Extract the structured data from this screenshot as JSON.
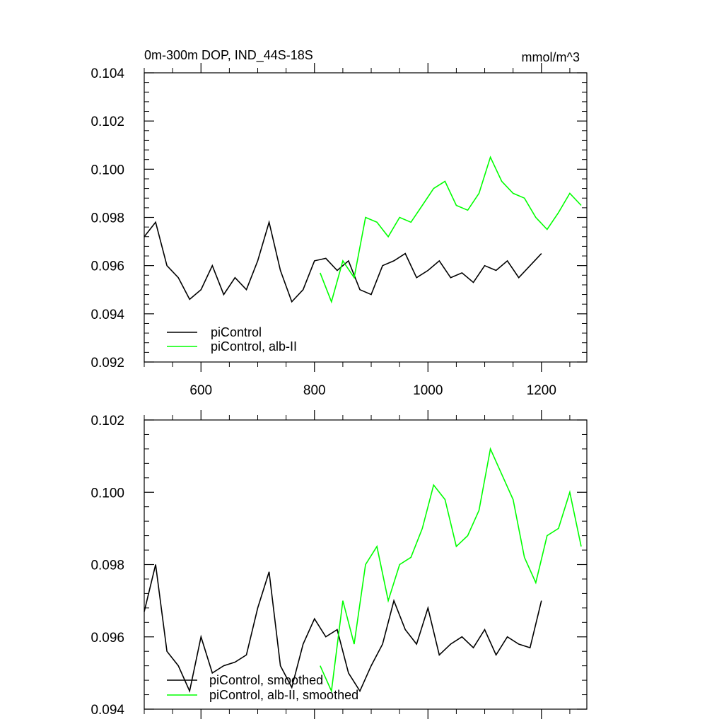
{
  "chart_data": [
    {
      "type": "line",
      "title_left": "0m-300m DOP, IND_44S-18S",
      "title_right": "mmol/m^3",
      "xlim": [
        500,
        1280
      ],
      "ylim": [
        0.092,
        0.104
      ],
      "xticks": [
        600,
        800,
        1000,
        1200
      ],
      "xtick_labels": [
        "600",
        "800",
        "1000",
        "1200"
      ],
      "yticks": [
        0.092,
        0.094,
        0.096,
        0.098,
        0.1,
        0.102,
        0.104
      ],
      "ytick_labels": [
        "0.092",
        "0.094",
        "0.096",
        "0.098",
        "0.100",
        "0.102",
        "0.104"
      ],
      "legend_position": "bottom-left",
      "series": [
        {
          "name": "piControl",
          "color": "#000000",
          "x": [
            500,
            520,
            540,
            560,
            580,
            600,
            620,
            640,
            660,
            680,
            700,
            720,
            740,
            760,
            780,
            800,
            820,
            840,
            860,
            880,
            900,
            920,
            940,
            960,
            980,
            1000,
            1020,
            1040,
            1060,
            1080,
            1100,
            1120,
            1140,
            1160,
            1180,
            1200
          ],
          "y": [
            0.0972,
            0.0978,
            0.096,
            0.0955,
            0.0946,
            0.095,
            0.096,
            0.0948,
            0.0955,
            0.095,
            0.0962,
            0.0978,
            0.0958,
            0.0945,
            0.095,
            0.0962,
            0.0963,
            0.0958,
            0.0962,
            0.095,
            0.0948,
            0.096,
            0.0962,
            0.0965,
            0.0955,
            0.0958,
            0.0962,
            0.0955,
            0.0957,
            0.0953,
            0.096,
            0.0958,
            0.0962,
            0.0955,
            0.096,
            0.0965
          ]
        },
        {
          "name": "piControl, alb-II",
          "color": "#00ff00",
          "x": [
            810,
            830,
            850,
            870,
            890,
            910,
            930,
            950,
            970,
            990,
            1010,
            1030,
            1050,
            1070,
            1090,
            1110,
            1130,
            1150,
            1170,
            1190,
            1210,
            1230,
            1250,
            1270
          ],
          "y": [
            0.0957,
            0.0945,
            0.0962,
            0.0955,
            0.098,
            0.0978,
            0.0972,
            0.098,
            0.0978,
            0.0985,
            0.0992,
            0.0995,
            0.0985,
            0.0983,
            0.099,
            0.1005,
            0.0995,
            0.099,
            0.0988,
            0.098,
            0.0975,
            0.0982,
            0.099,
            0.0985
          ]
        }
      ]
    },
    {
      "type": "line",
      "xlim": [
        500,
        1280
      ],
      "ylim": [
        0.094,
        0.102
      ],
      "xticks": [
        600,
        800,
        1000,
        1200
      ],
      "yticks": [
        0.094,
        0.096,
        0.098,
        0.1,
        0.102
      ],
      "ytick_labels": [
        "0.094",
        "0.096",
        "0.098",
        "0.100",
        "0.102"
      ],
      "legend_position": "bottom-left",
      "series": [
        {
          "name": "piControl, smoothed",
          "color": "#000000",
          "x": [
            500,
            520,
            540,
            560,
            580,
            600,
            620,
            640,
            660,
            680,
            700,
            720,
            740,
            760,
            780,
            800,
            820,
            840,
            860,
            880,
            900,
            920,
            940,
            960,
            980,
            1000,
            1020,
            1040,
            1060,
            1080,
            1100,
            1120,
            1140,
            1160,
            1180,
            1200
          ],
          "y": [
            0.0967,
            0.098,
            0.0956,
            0.0952,
            0.0945,
            0.096,
            0.095,
            0.0952,
            0.0953,
            0.0955,
            0.0968,
            0.0978,
            0.0952,
            0.0946,
            0.0958,
            0.0965,
            0.096,
            0.0962,
            0.095,
            0.0945,
            0.0952,
            0.0958,
            0.097,
            0.0962,
            0.0958,
            0.0968,
            0.0955,
            0.0958,
            0.096,
            0.0957,
            0.0962,
            0.0955,
            0.096,
            0.0958,
            0.0957,
            0.097
          ]
        },
        {
          "name": "piControl, alb-II, smoothed",
          "color": "#00ff00",
          "x": [
            810,
            830,
            850,
            870,
            890,
            910,
            930,
            950,
            970,
            990,
            1010,
            1030,
            1050,
            1070,
            1090,
            1110,
            1130,
            1150,
            1170,
            1190,
            1210,
            1230,
            1250,
            1270
          ],
          "y": [
            0.0952,
            0.0945,
            0.097,
            0.0958,
            0.098,
            0.0985,
            0.097,
            0.098,
            0.0982,
            0.099,
            0.1002,
            0.0998,
            0.0985,
            0.0988,
            0.0995,
            0.1012,
            0.1005,
            0.0998,
            0.0982,
            0.0975,
            0.0988,
            0.099,
            0.1,
            0.0985
          ]
        }
      ]
    }
  ]
}
